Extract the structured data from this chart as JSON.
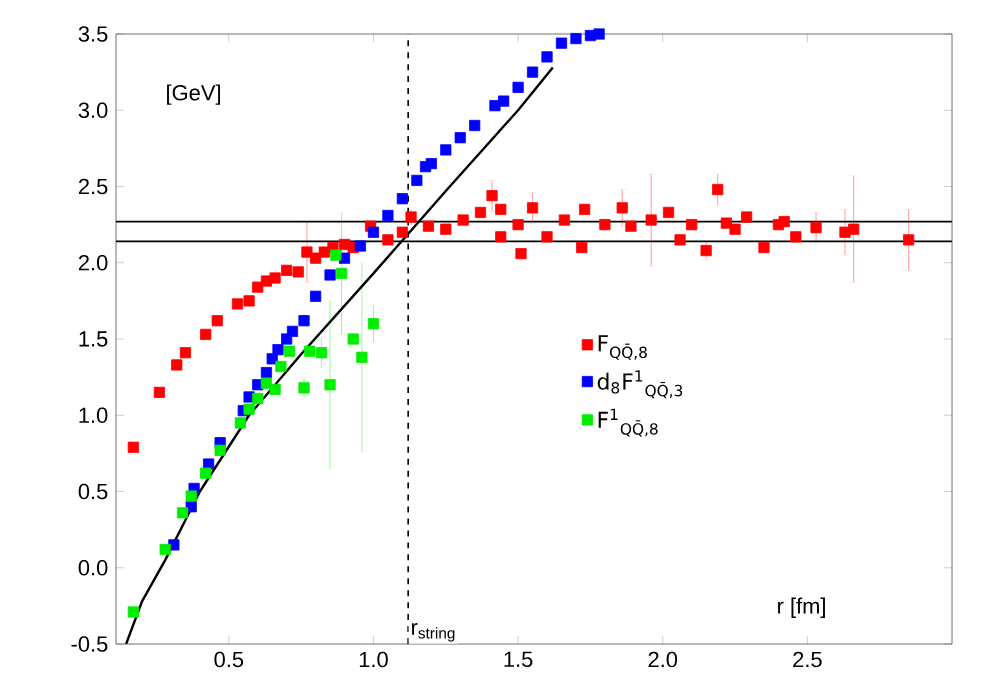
{
  "chart_data": {
    "type": "scatter",
    "xlabel": "r [fm]",
    "annotations": [
      "[GeV]"
    ],
    "xlim": [
      0.11,
      3.0
    ],
    "ylim": [
      -0.5,
      3.5
    ],
    "xticks": [
      {
        "value": 0.5,
        "label": "0.5"
      },
      {
        "value": 1.0,
        "label": "1.0"
      },
      {
        "value": 1.5,
        "label": "1.5"
      },
      {
        "value": 2.0,
        "label": "2.0"
      },
      {
        "value": 2.5,
        "label": "2.5"
      }
    ],
    "yticks": [
      {
        "value": -0.5,
        "label": "-0.5"
      },
      {
        "value": 0,
        "label": "0.0"
      },
      {
        "value": 0.5,
        "label": "0.5"
      },
      {
        "value": 1.0,
        "label": "1.0"
      },
      {
        "value": 1.5,
        "label": "1.5"
      },
      {
        "value": 2.0,
        "label": "2.0"
      },
      {
        "value": 2.5,
        "label": "2.5"
      },
      {
        "value": 3.0,
        "label": "3.0"
      },
      {
        "value": 3.5,
        "label": "3.5"
      }
    ],
    "grid": false,
    "legend": "right",
    "marker": "square",
    "ref_lines": [
      {
        "axis": "x",
        "value": 1.12,
        "label": "r$_{string}$",
        "color": "#000000",
        "line_style": "dashed"
      },
      {
        "axis": "y",
        "value": 2.27,
        "color": "#000000",
        "line_style": "solid"
      },
      {
        "axis": "y",
        "value": 2.14,
        "color": "#000000",
        "line_style": "solid"
      }
    ],
    "series": [
      {
        "name": "F$_{QQ̄,8}$",
        "color": "#ff0000",
        "x": [
          0.17,
          0.26,
          0.32,
          0.35,
          0.42,
          0.46,
          0.53,
          0.57,
          0.6,
          0.63,
          0.66,
          0.7,
          0.74,
          0.77,
          0.8,
          0.83,
          0.86,
          0.9,
          0.93,
          0.99,
          1.05,
          1.1,
          1.13,
          1.19,
          1.25,
          1.31,
          1.37,
          1.41,
          1.44,
          1.44,
          1.5,
          1.51,
          1.55,
          1.6,
          1.66,
          1.72,
          1.73,
          1.8,
          1.86,
          1.89,
          1.96,
          2.02,
          2.06,
          2.1,
          2.15,
          2.19,
          2.22,
          2.25,
          2.29,
          2.35,
          2.4,
          2.42,
          2.46,
          2.53,
          2.63,
          2.66,
          2.85
        ],
        "values": [
          0.79,
          1.15,
          1.33,
          1.41,
          1.53,
          1.62,
          1.73,
          1.75,
          1.84,
          1.88,
          1.9,
          1.95,
          1.94,
          2.07,
          2.03,
          2.07,
          2.1,
          2.12,
          2.1,
          2.24,
          2.15,
          2.2,
          2.3,
          2.24,
          2.22,
          2.28,
          2.33,
          2.44,
          2.35,
          2.17,
          2.25,
          2.06,
          2.36,
          2.17,
          2.28,
          2.1,
          2.35,
          2.25,
          2.36,
          2.24,
          2.28,
          2.33,
          2.15,
          2.25,
          2.08,
          2.48,
          2.26,
          2.22,
          2.3,
          2.1,
          2.25,
          2.27,
          2.17,
          2.23,
          2.2,
          2.22,
          2.15
        ],
        "errors": [
          null,
          null,
          null,
          null,
          null,
          null,
          null,
          null,
          null,
          null,
          null,
          null,
          null,
          0.2,
          null,
          null,
          null,
          null,
          null,
          null,
          null,
          null,
          0.05,
          null,
          null,
          null,
          null,
          0.1,
          null,
          null,
          null,
          null,
          0.1,
          null,
          null,
          null,
          null,
          null,
          0.12,
          null,
          0.3,
          null,
          null,
          null,
          0.06,
          0.1,
          null,
          null,
          null,
          null,
          null,
          null,
          null,
          0.1,
          0.15,
          0.35,
          0.2
        ]
      },
      {
        "name": "d$_{8}$F$^{1}$$_{QQ̄,3}$",
        "color": "#0000ff",
        "x": [
          0.31,
          0.37,
          0.38,
          0.43,
          0.47,
          0.55,
          0.57,
          0.6,
          0.63,
          0.65,
          0.67,
          0.7,
          0.72,
          0.76,
          0.8,
          0.85,
          0.9,
          0.955,
          1.0,
          1.05,
          1.1,
          1.15,
          1.18,
          1.2,
          1.25,
          1.3,
          1.35,
          1.42,
          1.45,
          1.5,
          1.55,
          1.6,
          1.65,
          1.7,
          1.75,
          1.78
        ],
        "values": [
          0.15,
          0.4,
          0.52,
          0.68,
          0.82,
          1.03,
          1.12,
          1.2,
          1.28,
          1.37,
          1.43,
          1.5,
          1.55,
          1.62,
          1.78,
          1.92,
          2.03,
          2.11,
          2.2,
          2.31,
          2.42,
          2.54,
          2.63,
          2.65,
          2.74,
          2.82,
          2.9,
          3.03,
          3.06,
          3.15,
          3.25,
          3.35,
          3.44,
          3.47,
          3.49,
          3.5
        ]
      },
      {
        "name": "F$^{1}$$_{QQ̄,8}$",
        "color": "#00ee00",
        "x": [
          0.17,
          0.28,
          0.34,
          0.37,
          0.42,
          0.47,
          0.54,
          0.57,
          0.6,
          0.63,
          0.66,
          0.68,
          0.71,
          0.76,
          0.78,
          0.82,
          0.85,
          0.87,
          0.89,
          0.93,
          0.96,
          1.0
        ],
        "values": [
          -0.29,
          0.12,
          0.36,
          0.47,
          0.62,
          0.77,
          0.95,
          1.04,
          1.11,
          1.21,
          1.17,
          1.32,
          1.42,
          1.18,
          1.42,
          1.41,
          1.2,
          2.05,
          1.93,
          1.5,
          1.38,
          1.6
        ],
        "errors": [
          null,
          null,
          null,
          null,
          null,
          null,
          null,
          null,
          null,
          null,
          null,
          null,
          null,
          0.07,
          null,
          0.1,
          0.55,
          null,
          0.4,
          null,
          0.62,
          0.12
        ]
      },
      {
        "color": "#000000",
        "type": "line",
        "marker": "none",
        "line_style": "solid",
        "x": [
          0.145,
          0.2,
          0.28,
          0.4,
          0.57,
          0.75,
          1.0,
          1.25,
          1.5,
          1.62
        ],
        "values": [
          -0.5,
          -0.22,
          0.05,
          0.5,
          1.0,
          1.4,
          1.93,
          2.47,
          3.0,
          3.28
        ]
      }
    ]
  }
}
